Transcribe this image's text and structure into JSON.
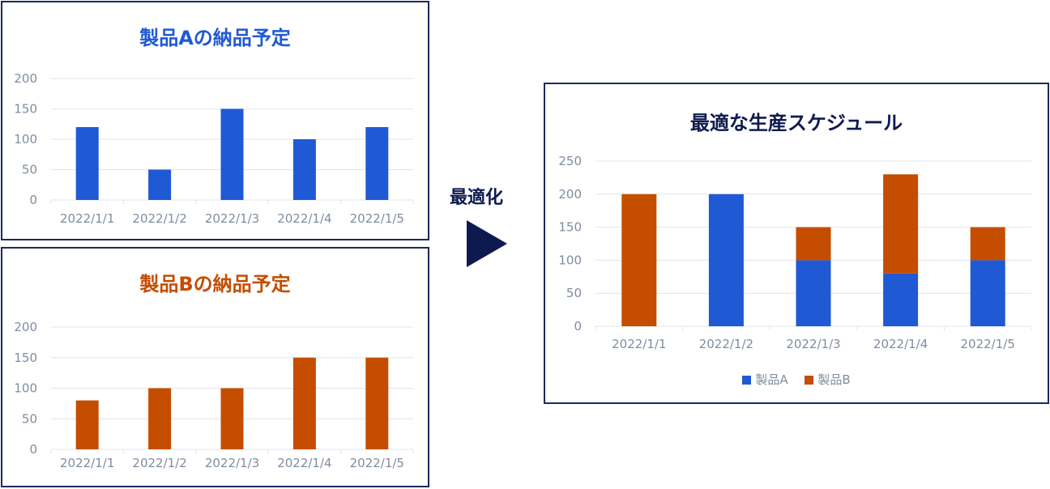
{
  "colors": {
    "product_a": "#2059d4",
    "product_b": "#c44d00",
    "navy": "#0e1a4f",
    "axis_text": "#7f8da0",
    "grid": "#e1e4ea"
  },
  "center": {
    "label": "最適化",
    "arrow_icon": "play-triangle-icon"
  },
  "chart_data": [
    {
      "type": "bar",
      "title": "製品Aの納品予定",
      "categories": [
        "2022/1/1",
        "2022/1/2",
        "2022/1/3",
        "2022/1/4",
        "2022/1/5"
      ],
      "series": [
        {
          "values": [
            120,
            50,
            150,
            100,
            120
          ],
          "color": "#2059d4"
        }
      ],
      "yticks": [
        "0",
        "50",
        "100",
        "150",
        "200"
      ],
      "ylim": [
        0,
        200
      ],
      "grid": true
    },
    {
      "type": "bar",
      "title": "製品Bの納品予定",
      "categories": [
        "2022/1/1",
        "2022/1/2",
        "2022/1/3",
        "2022/1/4",
        "2022/1/5"
      ],
      "series": [
        {
          "values": [
            80,
            100,
            100,
            150,
            150
          ],
          "color": "#c44d00"
        }
      ],
      "yticks": [
        "0",
        "50",
        "100",
        "150",
        "200"
      ],
      "ylim": [
        0,
        200
      ],
      "grid": true
    },
    {
      "type": "bar",
      "stacked": true,
      "title": "最適な生産スケジュール",
      "categories": [
        "2022/1/1",
        "2022/1/2",
        "2022/1/3",
        "2022/1/4",
        "2022/1/5"
      ],
      "series": [
        {
          "name": "製品A",
          "values": [
            0,
            200,
            100,
            80,
            100
          ],
          "color": "#2059d4"
        },
        {
          "name": "製品B",
          "values": [
            200,
            0,
            50,
            150,
            50
          ],
          "color": "#c44d00"
        }
      ],
      "yticks": [
        "0",
        "50",
        "100",
        "150",
        "200",
        "250"
      ],
      "ylim": [
        0,
        250
      ],
      "grid": true,
      "legend": "bottom"
    }
  ]
}
